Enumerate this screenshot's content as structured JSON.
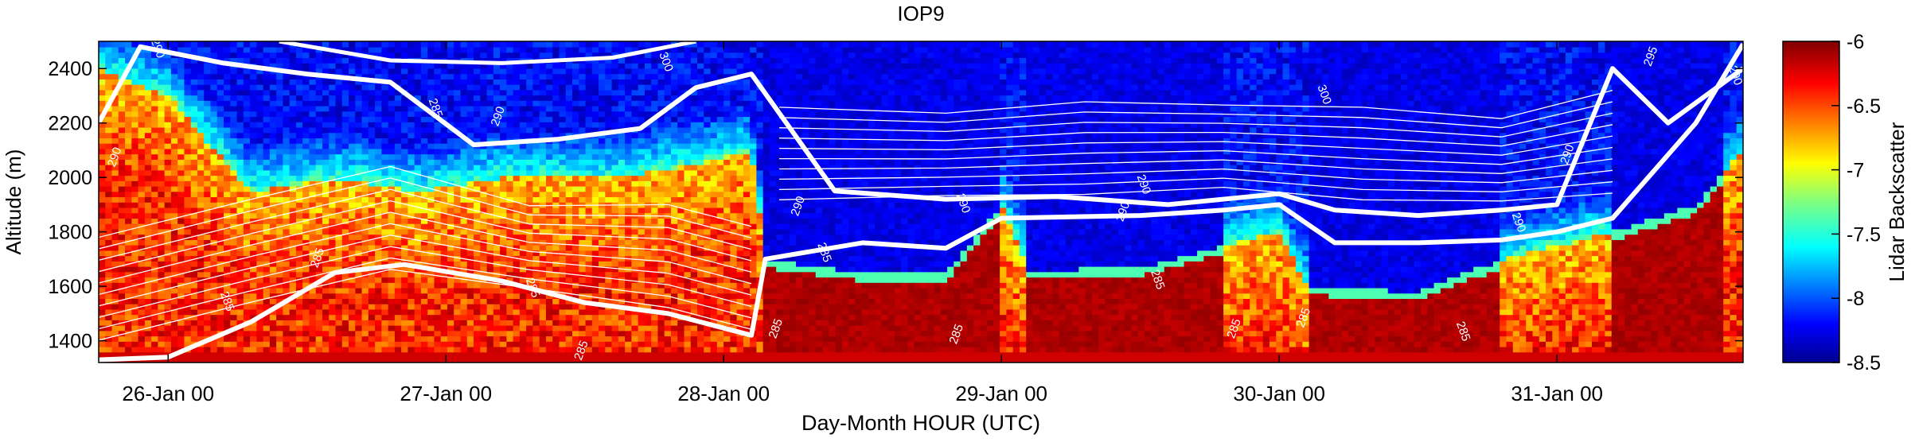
{
  "chart_data": {
    "type": "heatmap",
    "title": "IOP9",
    "xlabel": "Day-Month HOUR (UTC)",
    "ylabel": "Altitude (m)",
    "ylim": [
      1320,
      2500
    ],
    "yticks": [
      1400,
      1600,
      1800,
      2000,
      2200,
      2400
    ],
    "xlim_days": [
      25.75,
      31.67
    ],
    "xticks": [
      {
        "day": 26,
        "label": "26-Jan 00"
      },
      {
        "day": 27,
        "label": "27-Jan 00"
      },
      {
        "day": 28,
        "label": "28-Jan 00"
      },
      {
        "day": 29,
        "label": "29-Jan 00"
      },
      {
        "day": 30,
        "label": "30-Jan 00"
      },
      {
        "day": 31,
        "label": "31-Jan 00"
      }
    ],
    "colorbar": {
      "label": "Lidar Backscatter",
      "range": [
        -8.5,
        -6
      ],
      "ticks": [
        -6,
        -6.5,
        -7,
        -7.5,
        -8,
        -8.5
      ],
      "colormap": "jet"
    },
    "contour_labels": [
      {
        "text": "290",
        "day": 25.95,
        "alt": 2470
      },
      {
        "text": "290",
        "day": 25.82,
        "alt": 2070
      },
      {
        "text": "285",
        "day": 26.2,
        "alt": 1540
      },
      {
        "text": "285",
        "day": 26.55,
        "alt": 1700
      },
      {
        "text": "285",
        "day": 26.95,
        "alt": 2250
      },
      {
        "text": "290",
        "day": 27.2,
        "alt": 2220
      },
      {
        "text": "285",
        "day": 27.3,
        "alt": 1590
      },
      {
        "text": "285",
        "day": 27.5,
        "alt": 1360
      },
      {
        "text": "300",
        "day": 27.78,
        "alt": 2420
      },
      {
        "text": "290",
        "day": 28.28,
        "alt": 1890
      },
      {
        "text": "285",
        "day": 28.35,
        "alt": 1720
      },
      {
        "text": "285",
        "day": 28.2,
        "alt": 1440
      },
      {
        "text": "290",
        "day": 28.85,
        "alt": 1900
      },
      {
        "text": "285",
        "day": 28.85,
        "alt": 1420
      },
      {
        "text": "290",
        "day": 29.5,
        "alt": 1970
      },
      {
        "text": "290",
        "day": 29.45,
        "alt": 1870
      },
      {
        "text": "285",
        "day": 29.55,
        "alt": 1620
      },
      {
        "text": "285",
        "day": 29.85,
        "alt": 1440
      },
      {
        "text": "300",
        "day": 30.15,
        "alt": 2300
      },
      {
        "text": "285",
        "day": 30.1,
        "alt": 1480
      },
      {
        "text": "290",
        "day": 30.85,
        "alt": 1830
      },
      {
        "text": "290",
        "day": 31.05,
        "alt": 2080
      },
      {
        "text": "285",
        "day": 30.65,
        "alt": 1430
      },
      {
        "text": "295",
        "day": 31.35,
        "alt": 2440
      },
      {
        "text": "290",
        "day": 31.63,
        "alt": 2370
      }
    ]
  }
}
